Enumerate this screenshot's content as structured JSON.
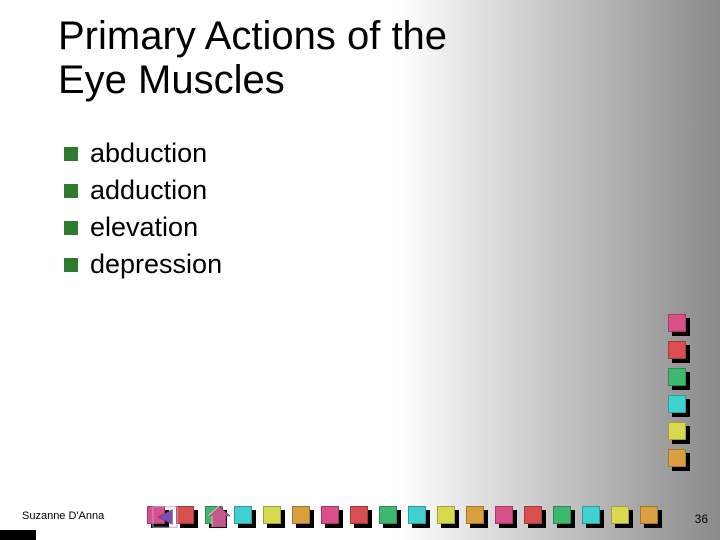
{
  "title_line1": "Primary Actions of the",
  "title_line2": "Eye Muscles",
  "bullets": [
    "abduction",
    "adduction",
    "elevation",
    "depression"
  ],
  "bullet_color": "#2e7a2e",
  "author": "Suzanne D'Anna",
  "page_number": "36",
  "title_fontsize": 40,
  "bullet_fontsize": 27,
  "author_fontsize": 11,
  "pagenum_fontsize": 12,
  "background_gradient": [
    "#ffffff",
    "#ffffff",
    "#c6c6c6",
    "#8a8a8a"
  ],
  "nav": {
    "back_color": "#7a4fb0",
    "back_border": "#b89fe0",
    "home_color": "#c05a8a",
    "home_border_light": "#e8b8d0",
    "home_border_dark": "#7a2f55"
  },
  "color_stack": [
    "#d94f8a",
    "#d94f4f",
    "#3fb86f",
    "#3fd0d0",
    "#d9d94f",
    "#d9a03f"
  ],
  "color_row": [
    "#d94f8a",
    "#d94f4f",
    "#3fb86f",
    "#3fd0d0",
    "#d9d94f",
    "#d9a03f",
    "#d94f8a",
    "#d94f4f",
    "#3fb86f",
    "#3fd0d0",
    "#d9d94f",
    "#d9a03f",
    "#d94f8a",
    "#d94f4f",
    "#3fb86f",
    "#3fd0d0",
    "#d9d94f",
    "#d9a03f"
  ]
}
